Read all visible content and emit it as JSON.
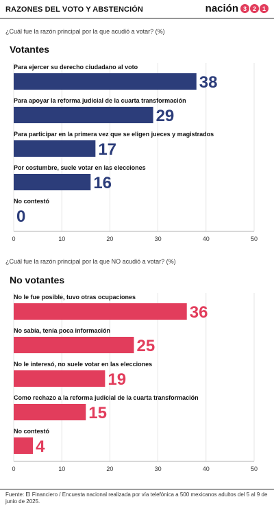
{
  "header": {
    "title": "RAZONES DEL VOTO Y ABSTENCIÓN",
    "brand_word": "nación",
    "brand_digits": [
      "3",
      "2",
      "1"
    ]
  },
  "colors": {
    "voters": "#2c3d7a",
    "nonvoters": "#e23d5c",
    "brand": "#e23d5c"
  },
  "chart_data": [
    {
      "type": "bar",
      "title": "Votantes",
      "subtitle": "¿Cuál fue la razón principal por la que acudió a votar?  (%)",
      "categories": [
        "Para ejercer su derecho ciudadano al voto",
        "Para apoyar la reforma judicial de la cuarta transformación",
        "Para participar en la primera vez que se eligen jueces y magistrados",
        "Por costumbre, suele votar en las elecciones",
        "No contestó"
      ],
      "values": [
        38,
        29,
        17,
        16,
        0
      ],
      "xlim": [
        0,
        50
      ],
      "xticks": [
        0,
        10,
        20,
        30,
        40,
        50
      ],
      "color": "#2c3d7a",
      "grid": true
    },
    {
      "type": "bar",
      "title": "No votantes",
      "subtitle": "¿Cuál fue la razón principal por la que NO acudió a votar? (%)",
      "categories": [
        "No le fue posible, tuvo otras ocupaciones",
        "No sabía, tenía poca información",
        "No le interesó, no suele votar en las elecciones",
        "Como rechazo a la reforma judicial de la cuarta transformación",
        "No contestó"
      ],
      "values": [
        36,
        25,
        19,
        15,
        4
      ],
      "xlim": [
        0,
        50
      ],
      "xticks": [
        0,
        10,
        20,
        30,
        40,
        50
      ],
      "color": "#e23d5c",
      "grid": true
    }
  ],
  "footer": {
    "source": "Fuente: El Financiero / Encuesta nacional realizada por vía telefónica a 500 mexicanos adultos del 5 al 9 de junio de 2025."
  }
}
